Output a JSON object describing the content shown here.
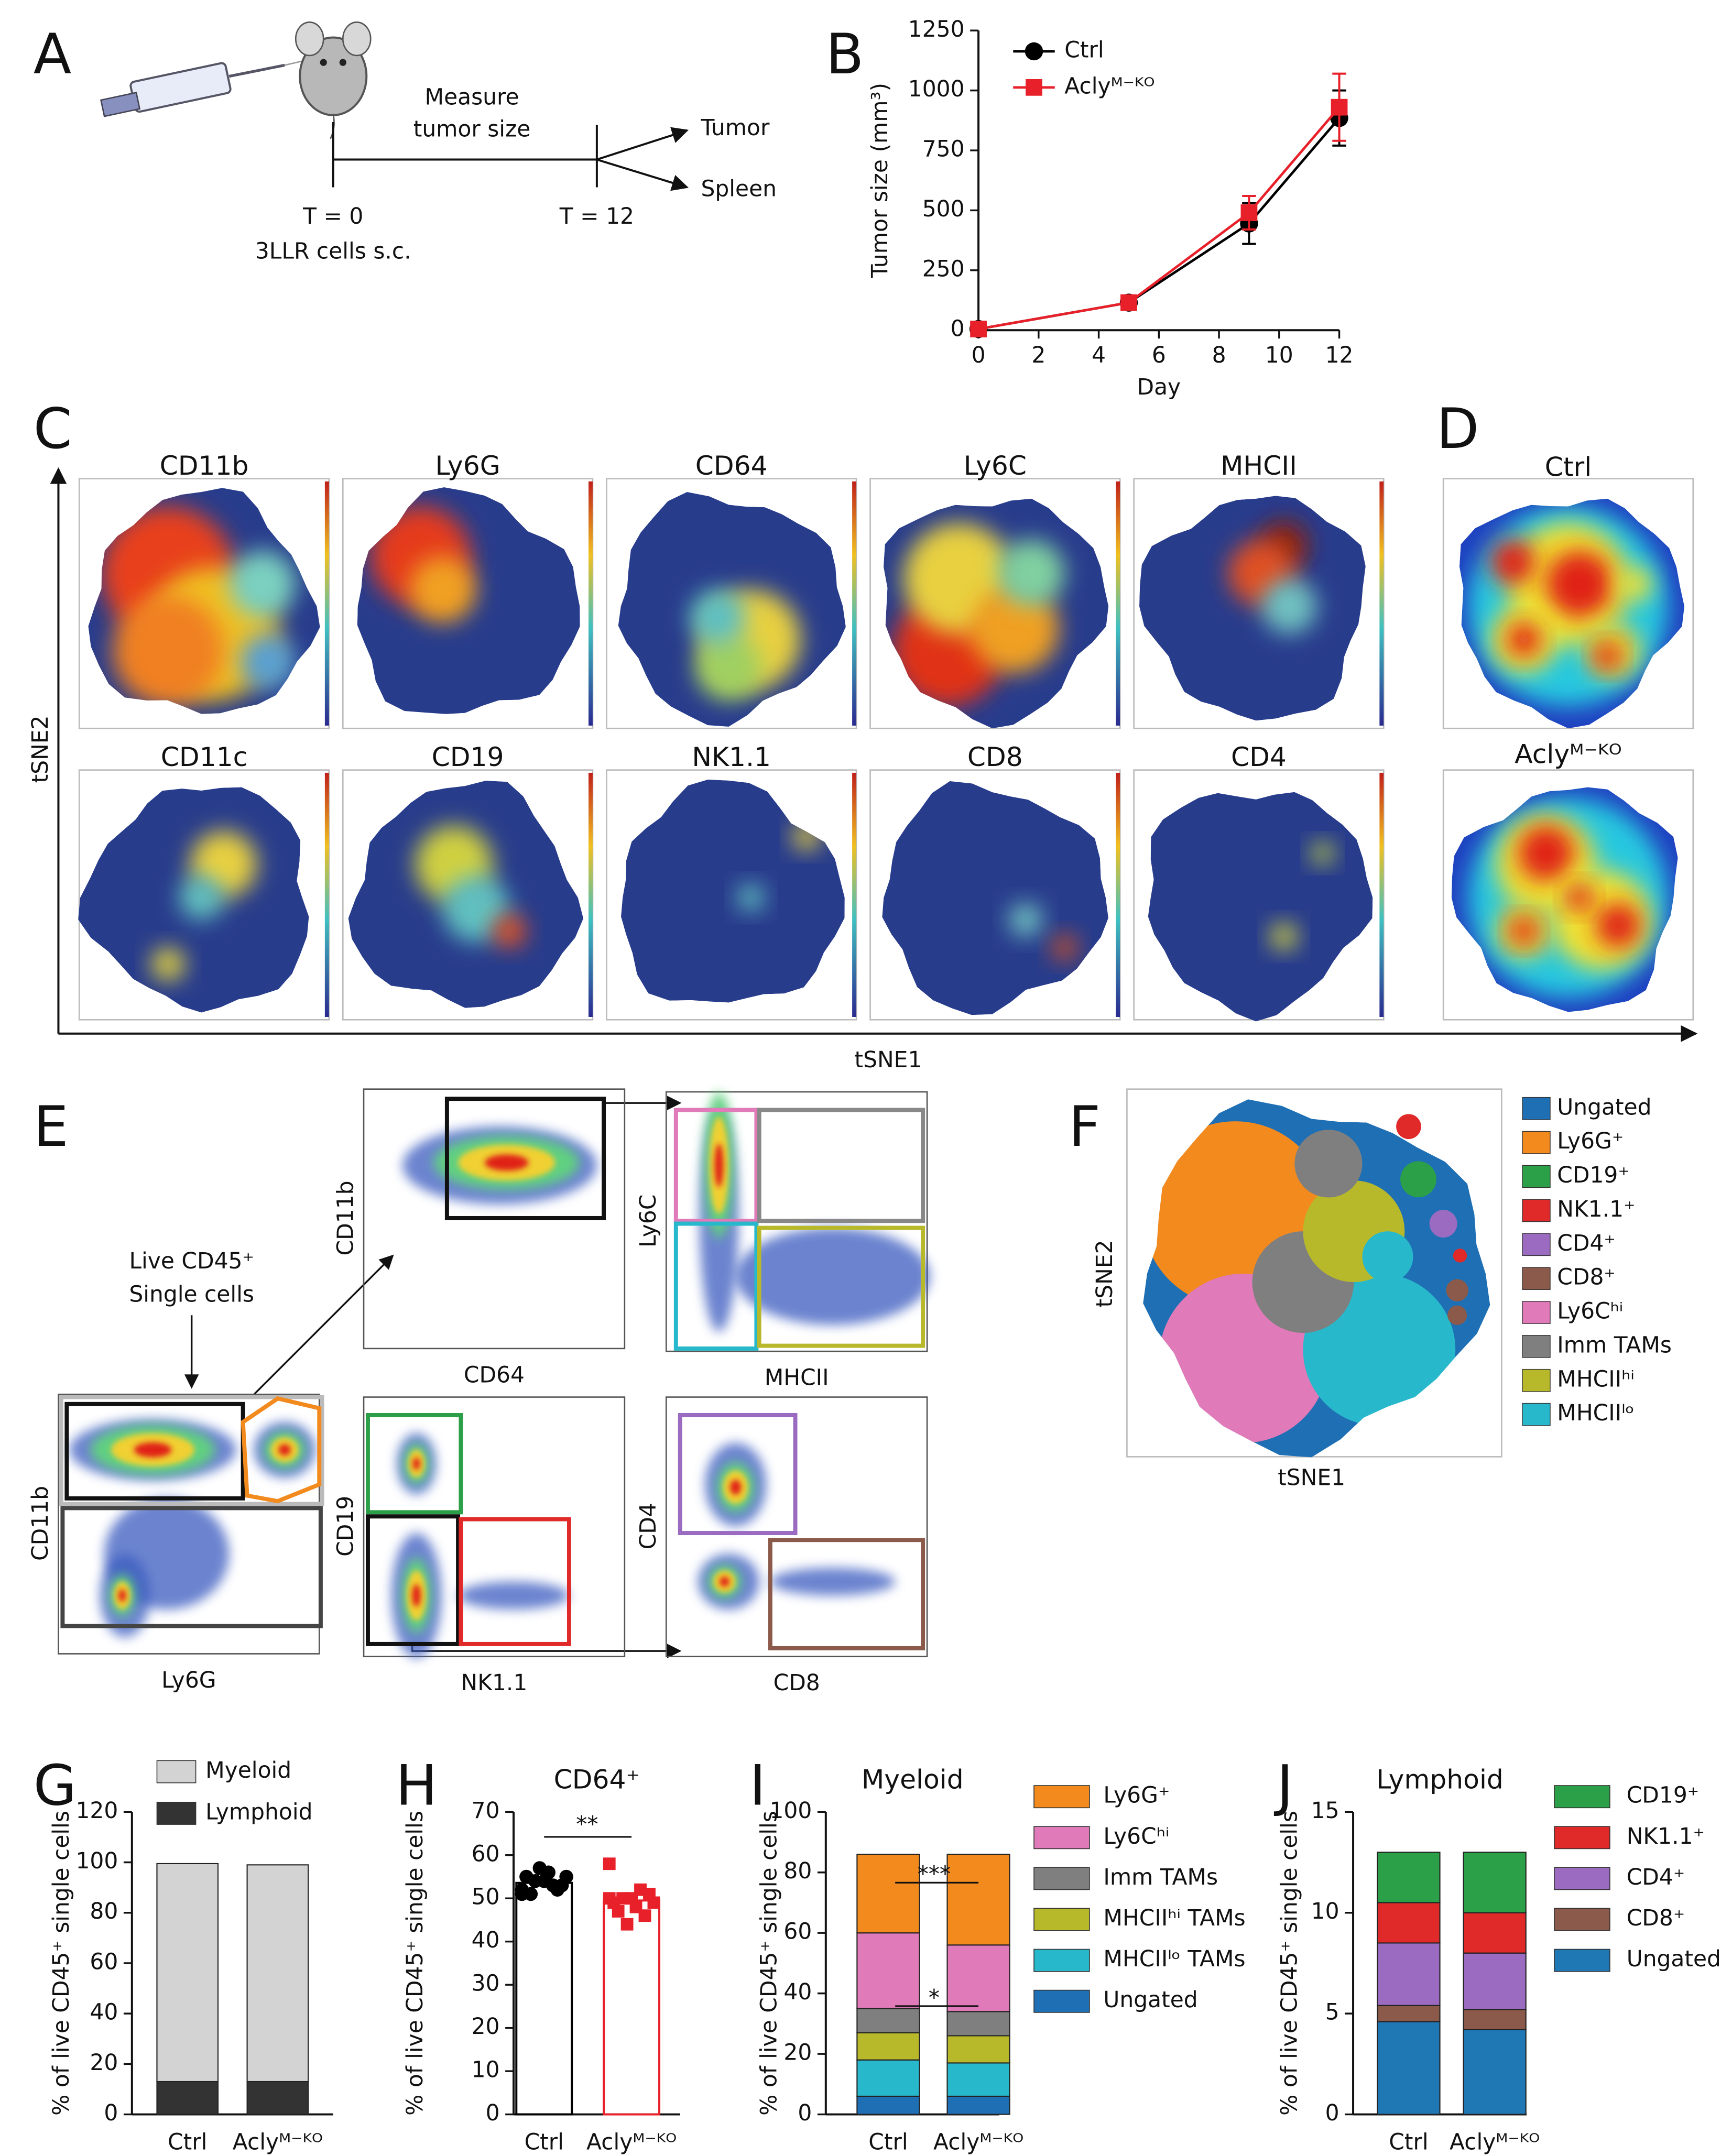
{
  "schematic": {
    "label": "A",
    "measure": [
      "Measure",
      "tumor size"
    ],
    "outputs": [
      "Tumor",
      "Spleen"
    ],
    "start": [
      "T = 0",
      "3LLR cells s.c."
    ],
    "end": "T = 12"
  },
  "tsne_markers": {
    "label": "C",
    "markers": [
      "CD11b",
      "Ly6G",
      "CD64",
      "Ly6C",
      "MHCII",
      "CD11c",
      "CD19",
      "NK1.1",
      "CD8",
      "CD4"
    ],
    "x_label": "tSNE1",
    "y_label": "tSNE2"
  },
  "density": {
    "label": "D",
    "groups": [
      "Ctrl",
      "Aclyᴹ⁻ᴷᴼ"
    ]
  },
  "gating": {
    "label": "E",
    "gate_note": [
      "Live CD45⁺",
      "Single cells"
    ],
    "plots": [
      {
        "x": "Ly6G",
        "y": "CD11b"
      },
      {
        "x": "CD64",
        "y": "CD11b"
      },
      {
        "x": "MHCII",
        "y": "Ly6C"
      },
      {
        "x": "NK1.1",
        "y": "CD19"
      },
      {
        "x": "CD8",
        "y": "CD4"
      }
    ]
  },
  "clusters": {
    "label": "F",
    "x_label": "tSNE1",
    "y_label": "tSNE2",
    "legend": [
      {
        "name": "Ungated",
        "color": "#1f6fb4"
      },
      {
        "name": "Ly6G⁺",
        "color": "#f28a1e"
      },
      {
        "name": "CD19⁺",
        "color": "#2ca048"
      },
      {
        "name": "NK1.1⁺",
        "color": "#e02a2a"
      },
      {
        "name": "CD4⁺",
        "color": "#9a6bc0"
      },
      {
        "name": "CD8⁺",
        "color": "#8b5a4a"
      },
      {
        "name": "Ly6Cʰⁱ",
        "color": "#e07ab8"
      },
      {
        "name": "Imm TAMs",
        "color": "#7f7f7f"
      },
      {
        "name": "MHCIIʰⁱ",
        "color": "#b8b92a"
      },
      {
        "name": "MHCIIˡᵒ",
        "color": "#28b8cc"
      }
    ]
  },
  "chart_data": [
    {
      "label": "B",
      "type": "line",
      "x_label": "Day",
      "y_label": "Tumor size (mm³)",
      "x": [
        0,
        5,
        9,
        12
      ],
      "series": [
        {
          "name": "Ctrl",
          "color": "#000000",
          "marker": "circle",
          "values": [
            5,
            115,
            445,
            885
          ],
          "errors": [
            3,
            10,
            85,
            115
          ]
        },
        {
          "name": "Aclyᴹ⁻ᴷᴼ",
          "color": "#e8202a",
          "marker": "square",
          "values": [
            5,
            115,
            490,
            930
          ],
          "errors": [
            3,
            10,
            70,
            140
          ]
        }
      ],
      "xlim": [
        0,
        12
      ],
      "xticks": [
        0,
        2,
        4,
        6,
        8,
        10,
        12
      ],
      "ylim": [
        0,
        1250
      ],
      "yticks": [
        0,
        250,
        500,
        750,
        1000,
        1250
      ]
    },
    {
      "label": "G",
      "type": "stacked_bar",
      "y_label": "% of live CD45⁺ single cells",
      "categories": [
        "Ctrl",
        "Aclyᴹ⁻ᴷᴼ"
      ],
      "series": [
        {
          "name": "Myeloid",
          "color": "#d3d3d3",
          "values": [
            86.5,
            86
          ]
        },
        {
          "name": "Lymphoid",
          "color": "#333333",
          "values": [
            13,
            13
          ]
        }
      ],
      "ylim": [
        0,
        120
      ],
      "yticks": [
        0,
        20,
        40,
        60,
        80,
        100,
        120
      ]
    },
    {
      "label": "H",
      "type": "dot_bar",
      "title": "CD64⁺",
      "y_label": "% of live CD45⁺ single cells",
      "categories": [
        "Ctrl",
        "Aclyᴹ⁻ᴷᴼ"
      ],
      "colors": [
        "#000000",
        "#e8202a"
      ],
      "values": [
        53.58,
        49.5
      ],
      "points": [
        [
          52,
          53,
          54,
          55,
          56,
          51,
          53,
          54,
          55,
          52,
          57,
          51
        ],
        [
          58,
          52,
          50,
          49,
          48,
          47,
          51,
          50,
          49,
          46,
          44,
          50
        ]
      ],
      "annotations": [
        "**"
      ],
      "ylim": [
        0,
        70
      ],
      "yticks": [
        0,
        10,
        20,
        30,
        40,
        50,
        60,
        70
      ]
    },
    {
      "label": "I",
      "type": "stacked_bar",
      "title": "Myeloid",
      "y_label": "% of live CD45⁺ single cells",
      "categories": [
        "Ctrl",
        "Aclyᴹ⁻ᴷᴼ"
      ],
      "series": [
        {
          "name": "Ly6G⁺",
          "color": "#f28a1e",
          "values": [
            26,
            30
          ]
        },
        {
          "name": "Ly6Cʰⁱ",
          "color": "#e07ab8",
          "values": [
            25,
            22
          ]
        },
        {
          "name": "Imm TAMs",
          "color": "#7f7f7f",
          "values": [
            8,
            8
          ]
        },
        {
          "name": "MHCIIʰⁱ TAMs",
          "color": "#b8b92a",
          "values": [
            9,
            9
          ]
        },
        {
          "name": "MHCIIˡᵒ TAMs",
          "color": "#28b8cc",
          "values": [
            12,
            11
          ]
        },
        {
          "name": "Ungated",
          "color": "#1f6fb4",
          "values": [
            6,
            6
          ]
        }
      ],
      "annotations": [
        "***",
        "*"
      ],
      "ylim": [
        0,
        100
      ],
      "yticks": [
        0,
        20,
        40,
        60,
        80,
        100
      ]
    },
    {
      "label": "J",
      "type": "stacked_bar",
      "title": "Lymphoid",
      "y_label": "% of live CD45⁺ single cells",
      "categories": [
        "Ctrl",
        "Aclyᴹ⁻ᴷᴼ"
      ],
      "series": [
        {
          "name": "CD19⁺",
          "color": "#2ca048",
          "values": [
            2.5,
            3
          ]
        },
        {
          "name": "NK1.1⁺",
          "color": "#e02a2a",
          "values": [
            2,
            2
          ]
        },
        {
          "name": "CD4⁺",
          "color": "#9a6bc0",
          "values": [
            3.1,
            2.8
          ]
        },
        {
          "name": "CD8⁺",
          "color": "#8b5a4a",
          "values": [
            0.8,
            1
          ]
        },
        {
          "name": "Ungated",
          "color": "#1f77b4",
          "values": [
            4.6,
            4.2
          ]
        }
      ],
      "ylim": [
        0,
        15
      ],
      "yticks": [
        0,
        5,
        10,
        15
      ]
    }
  ]
}
